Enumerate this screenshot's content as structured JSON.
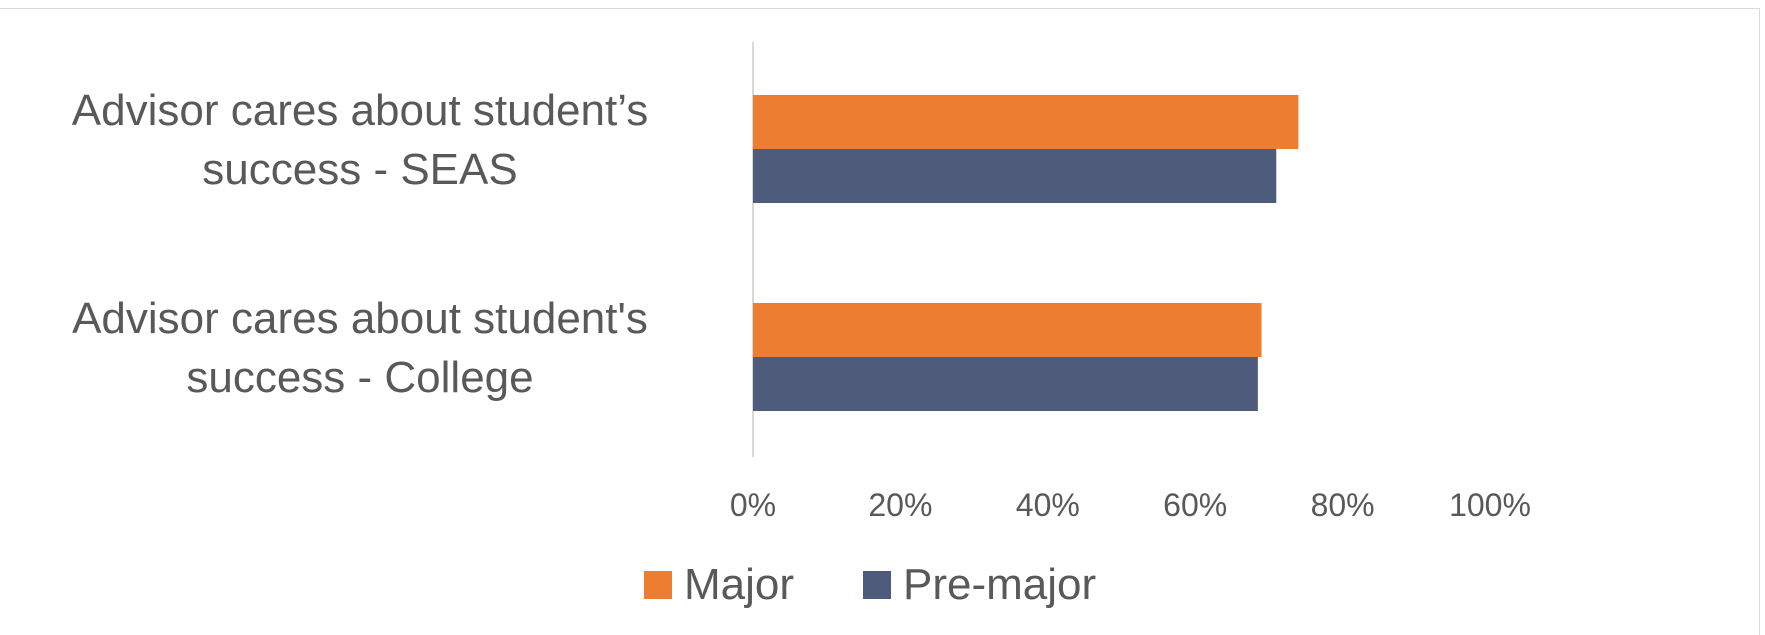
{
  "chart_data": {
    "type": "bar",
    "orientation": "horizontal",
    "categories": [
      [
        "Advisor cares about student’s",
        "success  - SEAS"
      ],
      [
        "Advisor cares about student's",
        "success  - College"
      ]
    ],
    "series": [
      {
        "name": "Major",
        "color": "#ED7D31",
        "values": [
          0.74,
          0.69
        ]
      },
      {
        "name": "Pre-major",
        "color": "#4E5B7A",
        "values": [
          0.71,
          0.685
        ]
      }
    ],
    "xlim": [
      0,
      1
    ],
    "xticks": [
      "0%",
      "20%",
      "40%",
      "60%",
      "80%",
      "100%"
    ],
    "legend_position": "bottom",
    "grid": false
  }
}
